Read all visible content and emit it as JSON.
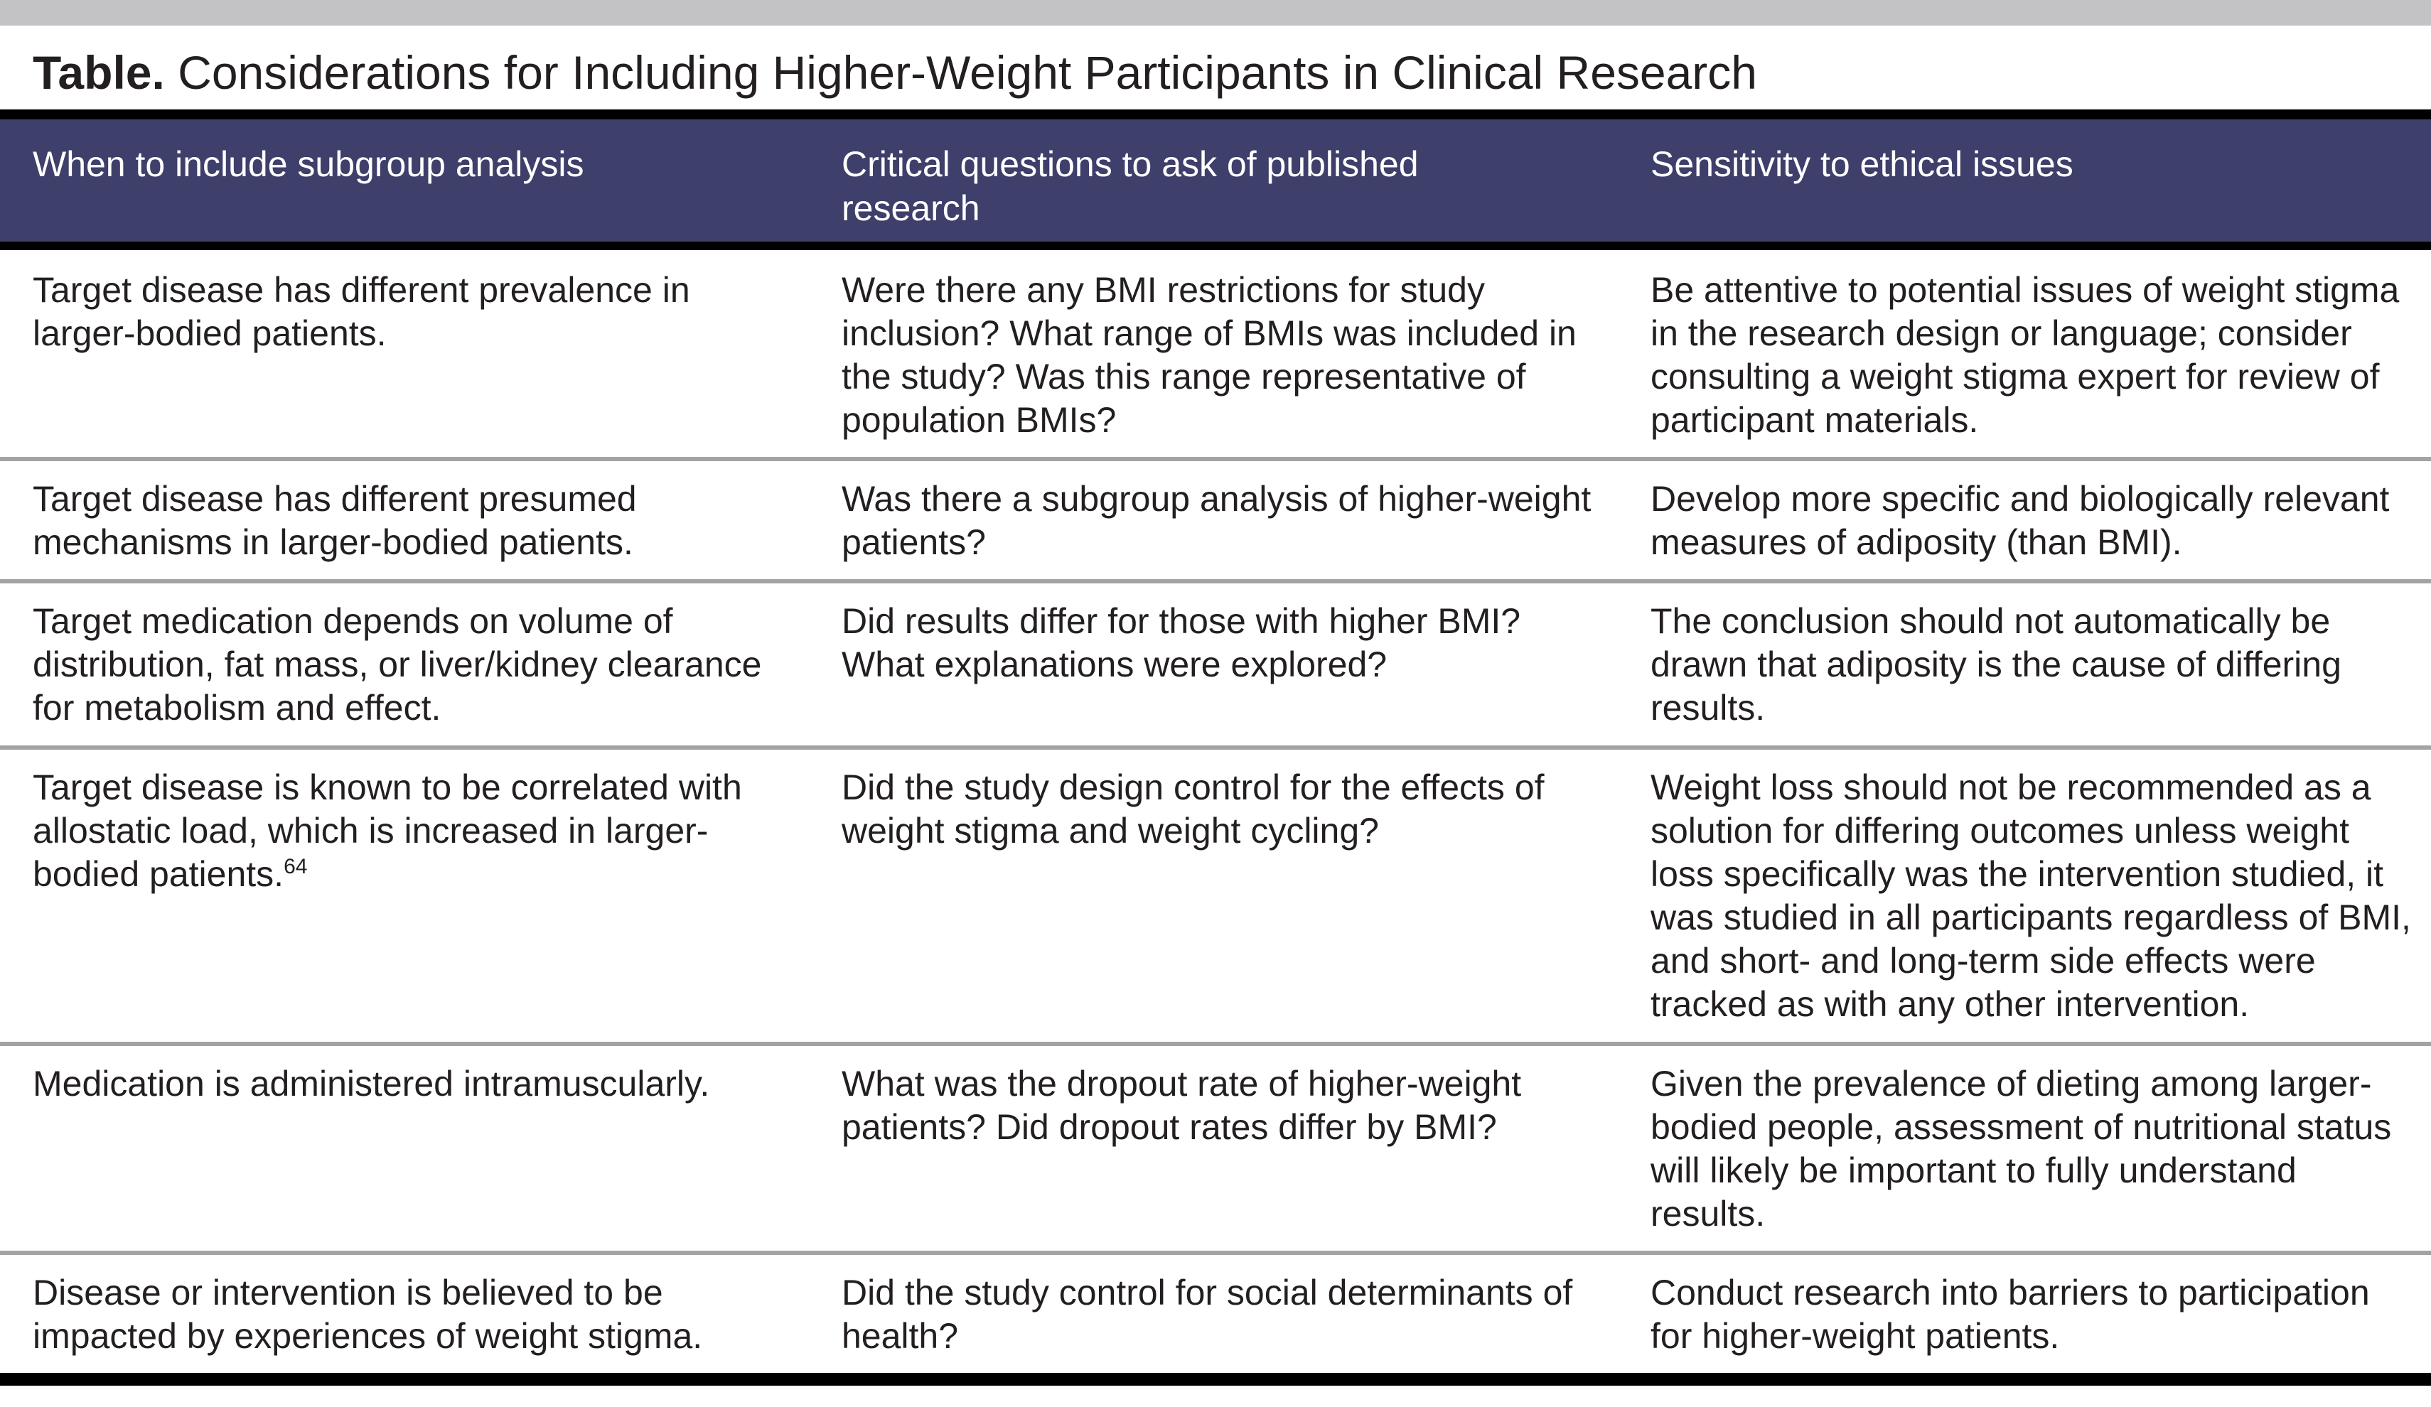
{
  "title": {
    "label": "Table.",
    "text": " Considerations for Including Higher-Weight Participants in Clinical Research"
  },
  "headers": [
    "When to include subgroup analysis",
    "Critical questions to ask of published research",
    "Sensitivity to ethical issues"
  ],
  "rows": [
    {
      "c1": "Target disease has different prevalence in larger-bodied patients.",
      "c1_sup": "",
      "c2": "Were there any BMI restrictions for study inclusion? What range of BMIs was included in the study? Was this range representative of population BMIs?",
      "c3": "Be attentive to potential issues of weight stigma in the research design or language; consider consulting a weight stigma expert for review of participant materials."
    },
    {
      "c1": "Target disease has different presumed mechanisms in larger-bodied patients.",
      "c1_sup": "",
      "c2": "Was there a subgroup analysis of higher-weight patients?",
      "c3": "Develop more specific and biologically relevant measures of adiposity (than BMI)."
    },
    {
      "c1": "Target medication depends on volume of distribution, fat mass, or liver/kidney clearance for metabolism and effect.",
      "c1_sup": "",
      "c2": "Did results differ for those with higher BMI? What explanations were explored?",
      "c3": "The conclusion should not automatically be drawn that adiposity is the cause of differing results."
    },
    {
      "c1": "Target disease is known to be correlated with allostatic load, which is increased in larger-bodied patients.",
      "c1_sup": "64",
      "c2": "Did the study design control for the effects of weight stigma and weight cycling?",
      "c3": "Weight loss should not be recommended as a solution for differing outcomes unless weight loss specifically was the intervention studied, it was studied in all participants regardless of BMI, and short- and long-term side effects were tracked as with any other intervention."
    },
    {
      "c1": "Medication is administered intramuscularly.",
      "c1_sup": "",
      "c2": "What was the dropout rate of higher-weight patients? Did dropout rates differ by BMI?",
      "c3": "Given the prevalence of dieting among larger-bodied people, assessment of nutritional status will likely be important to fully understand results."
    },
    {
      "c1": "Disease or intervention is believed to be impacted by experiences of weight stigma.",
      "c1_sup": "",
      "c2": "Did the study control for social determinants of health?",
      "c3": "Conduct research into barriers to participation for higher-weight patients."
    }
  ]
}
